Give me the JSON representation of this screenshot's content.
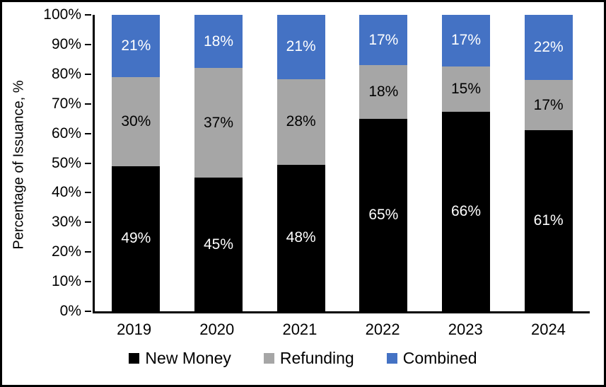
{
  "chart_data": {
    "type": "bar",
    "stacked": true,
    "percent_stacked": true,
    "title": "",
    "xlabel": "",
    "ylabel": "Percentage of Issuance, %",
    "ylim": [
      0,
      100
    ],
    "grid": false,
    "legend_position": "bottom",
    "ytick_labels": [
      "0%",
      "10%",
      "20%",
      "30%",
      "40%",
      "50%",
      "60%",
      "70%",
      "80%",
      "90%",
      "100%"
    ],
    "categories": [
      "2019",
      "2020",
      "2021",
      "2022",
      "2023",
      "2024"
    ],
    "series": [
      {
        "name": "New Money",
        "color": "#000000",
        "label_color": "#ffffff",
        "values": [
          49,
          45,
          48,
          65,
          66,
          61
        ],
        "labels": [
          "49%",
          "45%",
          "48%",
          "65%",
          "66%",
          "61%"
        ]
      },
      {
        "name": "Refunding",
        "color": "#A6A6A6",
        "label_color": "#000000",
        "values": [
          30,
          37,
          28,
          18,
          15,
          17
        ],
        "labels": [
          "30%",
          "37%",
          "28%",
          "18%",
          "15%",
          "17%"
        ]
      },
      {
        "name": "Combined",
        "color": "#4472C4",
        "label_color": "#ffffff",
        "values": [
          21,
          18,
          21,
          17,
          17,
          22
        ],
        "labels": [
          "21%",
          "18%",
          "21%",
          "17%",
          "17%",
          "22%"
        ]
      }
    ]
  },
  "colors": {
    "background": "#ffffff",
    "frame_border": "#000000",
    "axis": "#000000",
    "new_money": "#000000",
    "refunding": "#A6A6A6",
    "combined": "#4472C4"
  }
}
